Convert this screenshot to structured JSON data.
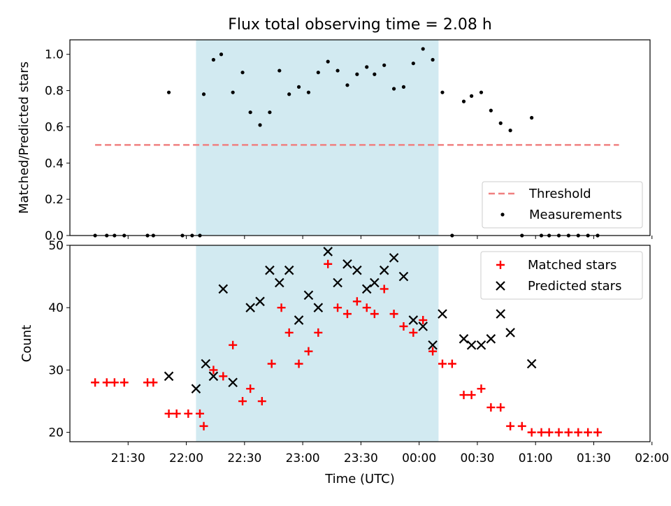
{
  "chart_data": {
    "title": "Flux total observing time = 2.08 h",
    "xlabel": "Time (UTC)",
    "x_ticks": [
      "21:30",
      "22:00",
      "22:30",
      "23:00",
      "23:30",
      "00:00",
      "00:30",
      "01:00",
      "01:30",
      "02:00"
    ],
    "x_range_minutes": [
      -150,
      149
    ],
    "shaded_region_minutes": [
      -85,
      40
    ],
    "colors": {
      "shade": "#add8e6",
      "threshold": "#f08080",
      "matched": "#ff0000",
      "predicted": "#000000",
      "measurement": "#000000"
    },
    "panels": [
      {
        "type": "scatter",
        "ylabel": "Matched/Predicted stars",
        "ylim": [
          0,
          1.08
        ],
        "y_ticks": [
          "0.0",
          "0.2",
          "0.4",
          "0.6",
          "0.8",
          "1.0"
        ],
        "legend_position": "lower-right",
        "threshold": {
          "name": "Threshold",
          "value": 0.5,
          "x_range": [
            -137,
            133
          ]
        },
        "series": [
          {
            "name": "Measurements",
            "marker": "dot",
            "x": [
              -137,
              -131,
              -127,
              -122,
              -110,
              -107,
              -99,
              -92,
              -87,
              -83,
              -81,
              -76,
              -72,
              -66,
              -61,
              -57,
              -52,
              -47,
              -42,
              -37,
              -32,
              -27,
              -22,
              -17,
              -12,
              -7,
              -2,
              3,
              7,
              12,
              17,
              22,
              27,
              32,
              37,
              42,
              47,
              53,
              57,
              62,
              67,
              72,
              77,
              83,
              88,
              93,
              97,
              102,
              107,
              112,
              117,
              122
            ],
            "y": [
              0,
              0,
              0,
              0,
              0,
              0,
              0.79,
              0,
              0,
              0,
              0.78,
              0.97,
              1.0,
              0.79,
              0.9,
              0.68,
              0.61,
              0.68,
              0.91,
              0.78,
              0.82,
              0.79,
              0.9,
              0.96,
              0.91,
              0.83,
              0.89,
              0.93,
              0.89,
              0.94,
              0.81,
              0.82,
              0.95,
              1.03,
              0.97,
              0.79,
              0,
              0.74,
              0.77,
              0.79,
              0.69,
              0.62,
              0.58,
              0,
              0.65,
              0,
              0,
              0,
              0,
              0,
              0,
              0
            ]
          }
        ]
      },
      {
        "type": "scatter",
        "ylabel": "Count",
        "ylim": [
          18.5,
          50
        ],
        "y_ticks": [
          "20",
          "30",
          "40",
          "50"
        ],
        "legend_position": "upper-right",
        "series": [
          {
            "name": "Matched stars",
            "marker": "plus",
            "x": [
              -137,
              -131,
              -127,
              -122,
              -110,
              -107,
              -99,
              -95,
              -89,
              -83,
              -81,
              -76,
              -71,
              -66,
              -61,
              -57,
              -51,
              -46,
              -41,
              -37,
              -32,
              -27,
              -22,
              -17,
              -12,
              -7,
              -2,
              3,
              7,
              12,
              17,
              22,
              27,
              32,
              37,
              42,
              47,
              53,
              57,
              62,
              67,
              72,
              77,
              83,
              88,
              93,
              97,
              102,
              107,
              112,
              117,
              122
            ],
            "y": [
              28,
              28,
              28,
              28,
              28,
              28,
              23,
              23,
              23,
              23,
              21,
              30,
              29,
              34,
              25,
              27,
              25,
              31,
              40,
              36,
              31,
              33,
              36,
              47,
              40,
              39,
              41,
              40,
              39,
              43,
              39,
              37,
              36,
              38,
              33,
              31,
              31,
              26,
              26,
              27,
              24,
              24,
              21,
              21,
              20,
              20,
              20,
              20,
              20,
              20,
              20,
              20
            ]
          },
          {
            "name": "Predicted stars",
            "marker": "x",
            "x": [
              -99,
              -85,
              -80,
              -76,
              -71,
              -66,
              -57,
              -52,
              -47,
              -42,
              -37,
              -32,
              -27,
              -22,
              -17,
              -12,
              -7,
              -2,
              3,
              7,
              12,
              17,
              22,
              27,
              32,
              37,
              42,
              53,
              57,
              62,
              67,
              72,
              77,
              88
            ],
            "y": [
              29,
              27,
              31,
              29,
              43,
              28,
              40,
              41,
              46,
              44,
              46,
              38,
              42,
              40,
              49,
              44,
              47,
              46,
              43,
              44,
              46,
              48,
              45,
              38,
              37,
              34,
              39,
              35,
              34,
              34,
              35,
              39,
              36,
              31
            ]
          }
        ]
      }
    ]
  }
}
